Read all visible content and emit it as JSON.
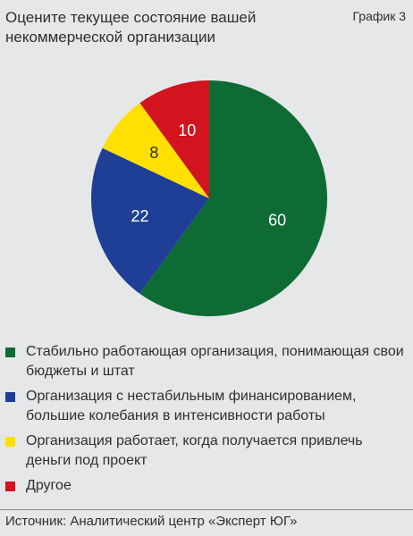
{
  "header": {
    "title": "Оцените текущее состояние вашей некоммерческой организации",
    "chart_tag": "График 3"
  },
  "chart_data": {
    "type": "pie",
    "title": "Оцените текущее состояние вашей некоммерческой организации",
    "legend_position": "bottom",
    "slices": [
      {
        "label": "Стабильно работающая организация, понимающая свои бюджеты и штат",
        "value": 60,
        "color": "#0e6b34"
      },
      {
        "label": "Организация с нестабильным финансированием, большие колебания в интенсивности работы",
        "value": 22,
        "color": "#1e3f95"
      },
      {
        "label": "Организация работает, когда получается привлечь деньги под проект",
        "value": 8,
        "color": "#ffe000"
      },
      {
        "label": "Другое",
        "value": 10,
        "color": "#d1141e"
      }
    ]
  },
  "footer": {
    "source": "Источник: Аналитический центр «Эксперт ЮГ»"
  }
}
